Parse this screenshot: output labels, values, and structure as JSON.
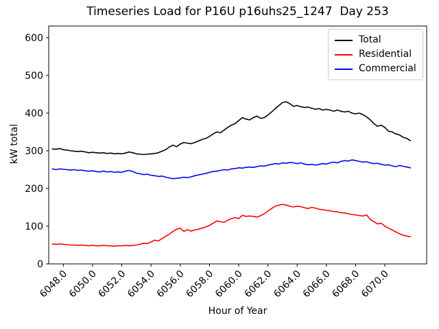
{
  "title": "Timeseries Load for P16U p16uhs25_1247  Day 253",
  "chart_data": {
    "type": "line",
    "title": "Timeseries Load for P16U p16uhs25_1247  Day 253",
    "xlabel": "Hour of Year",
    "ylabel": "kW total",
    "grid": false,
    "legend_position": "upper right",
    "xlim": [
      6047.0,
      6072.86
    ],
    "ylim": [
      0,
      631
    ],
    "x_ticks": [
      6048,
      6050,
      6052,
      6054,
      6056,
      6058,
      6060,
      6062,
      6064,
      6066,
      6068,
      6070
    ],
    "x_tick_labels": [
      "6048.0",
      "6050.0",
      "6052.0",
      "6054.0",
      "6056.0",
      "6058.0",
      "6060.0",
      "6062.0",
      "6064.0",
      "6066.0",
      "6068.0",
      "6070.0"
    ],
    "x_tick_rotation_deg": 45,
    "y_ticks": [
      0,
      100,
      200,
      300,
      400,
      500,
      600
    ],
    "y_tick_labels": [
      "0",
      "100",
      "200",
      "300",
      "400",
      "500",
      "600"
    ],
    "x_start": 6047.25,
    "x_step": 0.25,
    "series": [
      {
        "name": "Total",
        "color": "#000000",
        "values": [
          305,
          304,
          306,
          303,
          302,
          300,
          299,
          298,
          299,
          297,
          295,
          296,
          295,
          294,
          295,
          293,
          294,
          292,
          293,
          292,
          294,
          297,
          295,
          292,
          291,
          290,
          291,
          292,
          293,
          295,
          299,
          303,
          310,
          315,
          311,
          318,
          322,
          320,
          319,
          322,
          326,
          330,
          333,
          338,
          345,
          350,
          348,
          355,
          362,
          368,
          372,
          380,
          388,
          384,
          382,
          388,
          392,
          386,
          388,
          395,
          403,
          412,
          420,
          428,
          430,
          425,
          418,
          420,
          417,
          415,
          416,
          413,
          410,
          412,
          408,
          410,
          408,
          405,
          408,
          405,
          403,
          405,
          400,
          398,
          400,
          396,
          390,
          382,
          372,
          365,
          368,
          362,
          352,
          350,
          345,
          342,
          336,
          333,
          327
        ]
      },
      {
        "name": "Residential",
        "color": "#ff0000",
        "values": [
          53,
          52,
          53,
          52,
          51,
          50,
          50,
          49,
          50,
          49,
          48,
          49,
          48,
          48,
          49,
          48,
          48,
          47,
          48,
          48,
          49,
          48,
          49,
          50,
          52,
          55,
          54,
          58,
          63,
          61,
          67,
          73,
          79,
          86,
          92,
          95,
          86,
          91,
          87,
          90,
          92,
          95,
          98,
          102,
          108,
          114,
          112,
          110,
          116,
          120,
          123,
          120,
          129,
          126,
          127,
          126,
          124,
          128,
          133,
          140,
          147,
          153,
          156,
          158,
          156,
          153,
          151,
          153,
          152,
          149,
          147,
          150,
          148,
          145,
          144,
          142,
          141,
          139,
          138,
          136,
          135,
          133,
          131,
          130,
          128,
          127,
          130,
          118,
          112,
          106,
          108,
          100,
          95,
          90,
          85,
          80,
          76,
          74,
          72
        ]
      },
      {
        "name": "Commercial",
        "color": "#0000ff",
        "values": [
          252,
          250,
          252,
          251,
          250,
          249,
          250,
          248,
          249,
          247,
          246,
          247,
          245,
          244,
          246,
          244,
          245,
          243,
          244,
          243,
          246,
          248,
          245,
          241,
          239,
          237,
          238,
          235,
          234,
          232,
          233,
          230,
          228,
          226,
          227,
          228,
          230,
          229,
          231,
          234,
          236,
          238,
          240,
          243,
          245,
          246,
          248,
          250,
          249,
          252,
          253,
          255,
          254,
          256,
          257,
          256,
          258,
          260,
          259,
          262,
          264,
          266,
          265,
          268,
          267,
          269,
          268,
          266,
          268,
          265,
          263,
          264,
          262,
          264,
          266,
          265,
          268,
          270,
          268,
          272,
          274,
          273,
          276,
          274,
          272,
          270,
          271,
          268,
          266,
          267,
          264,
          262,
          263,
          260,
          258,
          261,
          259,
          257,
          255
        ]
      }
    ]
  }
}
